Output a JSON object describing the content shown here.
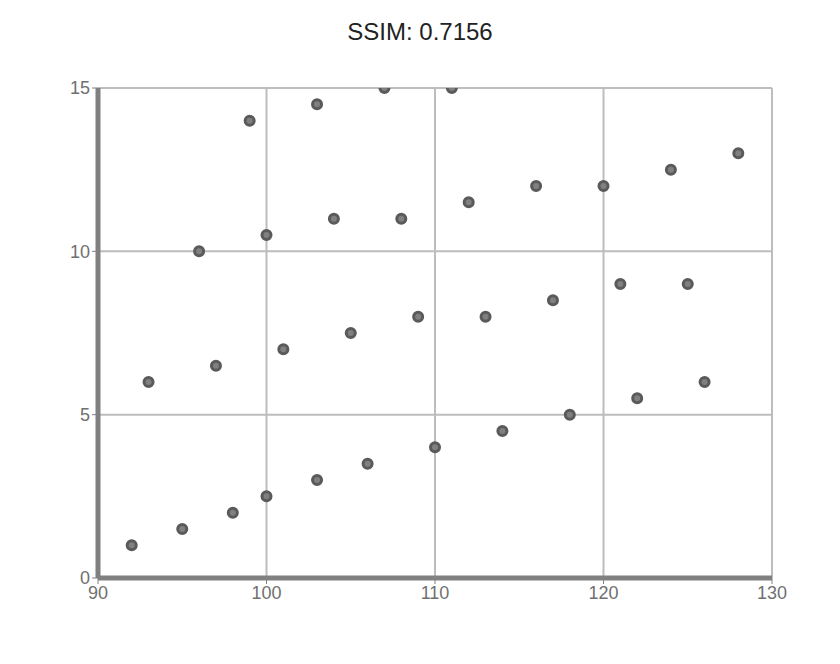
{
  "chart_data": {
    "type": "scatter",
    "title": "SSIM: 0.7156",
    "x": [
      92,
      95,
      98,
      100,
      103,
      106,
      110,
      114,
      118,
      122,
      126,
      93,
      97,
      101,
      105,
      109,
      113,
      117,
      121,
      125,
      96,
      100,
      104,
      108,
      112,
      116,
      120,
      124,
      128,
      99,
      103,
      107,
      111
    ],
    "values": [
      1,
      1.5,
      2,
      2.5,
      3,
      3.5,
      4,
      4.5,
      5,
      5.5,
      6,
      6,
      6.5,
      7,
      7.5,
      8,
      8,
      8.5,
      9,
      9,
      10,
      10.5,
      11,
      11,
      11.5,
      12,
      12,
      12.5,
      13,
      14,
      14.5,
      15,
      15
    ],
    "color": "#808080",
    "xlim": [
      90,
      130
    ],
    "xticks": [
      90,
      100,
      110,
      120,
      130
    ],
    "ylim": [
      0,
      15
    ],
    "yticks": [
      0,
      5,
      10,
      15
    ],
    "grid": true
  }
}
